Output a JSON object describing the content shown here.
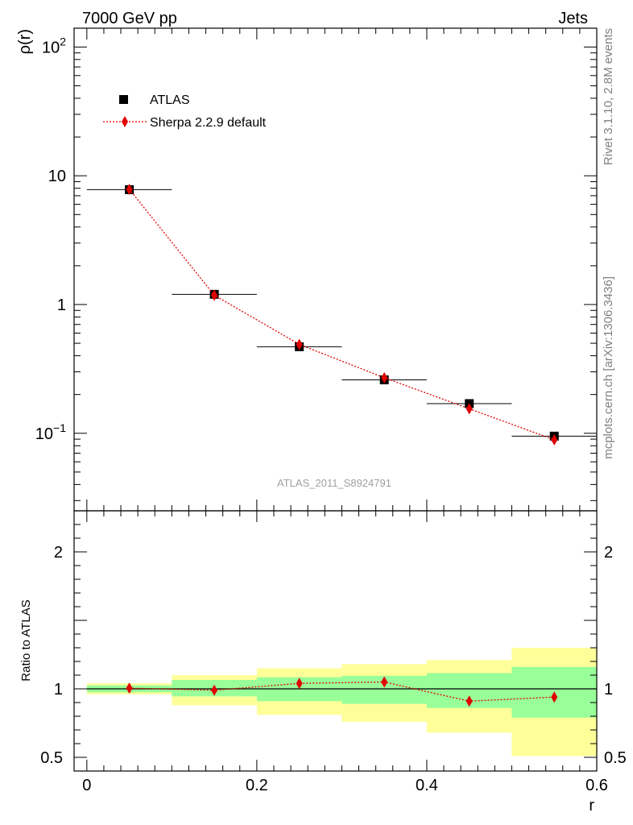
{
  "header": {
    "left": "7000 GeV pp",
    "right": "Jets"
  },
  "side_text": {
    "upper": "Rivet 3.1.10,  2.8M events",
    "lower": "mcplots.cern.ch [arXiv:1306.3436]"
  },
  "watermark": "ATLAS_2011_S8924791",
  "legend": {
    "data_label": "ATLAS",
    "mc_label": "Sherpa 2.2.9 default"
  },
  "colors": {
    "data": "#000000",
    "mc": "#e00000",
    "band_inner": "#99ff99",
    "band_outer": "#ffff99"
  },
  "chart_data": [
    {
      "type": "scatter",
      "ylabel": "ρ(r)",
      "yscale": "log",
      "ylim": [
        0.025,
        140
      ],
      "ytick_labels": [
        {
          "base": "10",
          "exp": "−1",
          "v": 0.1
        },
        {
          "base": "1",
          "exp": "",
          "v": 1
        },
        {
          "base": "10",
          "exp": "",
          "v": 10
        },
        {
          "base": "10",
          "exp": "2",
          "v": 100
        }
      ],
      "xlim": [
        -0.015,
        0.6
      ],
      "series": [
        {
          "name": "ATLAS",
          "x": [
            0.05,
            0.15,
            0.25,
            0.35,
            0.45,
            0.55
          ],
          "y": [
            7.8,
            1.2,
            0.47,
            0.26,
            0.17,
            0.095
          ],
          "xerr": 0.05
        },
        {
          "name": "Sherpa 2.2.9 default",
          "x": [
            0.05,
            0.15,
            0.25,
            0.35,
            0.45,
            0.55
          ],
          "y": [
            7.85,
            1.18,
            0.49,
            0.27,
            0.155,
            0.089
          ]
        }
      ]
    },
    {
      "type": "line",
      "xlabel": "r",
      "ylabel": "Ratio to ATLAS",
      "ylim": [
        0.4,
        2.3
      ],
      "xlim": [
        -0.015,
        0.6
      ],
      "xtick_labels": [
        "0",
        "0.2",
        "0.4",
        "0.6"
      ],
      "ytick_labels": [
        "0.5",
        "1",
        "2"
      ],
      "bins": [
        [
          0,
          0.1
        ],
        [
          0.1,
          0.2
        ],
        [
          0.2,
          0.3
        ],
        [
          0.3,
          0.4
        ],
        [
          0.4,
          0.5
        ],
        [
          0.5,
          0.6
        ]
      ],
      "band_inner": [
        [
          0.975,
          1.025
        ],
        [
          0.945,
          1.065
        ],
        [
          0.91,
          1.085
        ],
        [
          0.89,
          1.095
        ],
        [
          0.86,
          1.115
        ],
        [
          0.79,
          1.16
        ]
      ],
      "band_outer": [
        [
          0.96,
          1.04
        ],
        [
          0.88,
          1.1
        ],
        [
          0.81,
          1.15
        ],
        [
          0.76,
          1.18
        ],
        [
          0.68,
          1.21
        ],
        [
          0.51,
          1.3
        ]
      ],
      "series": [
        {
          "name": "Sherpa 2.2.9 default",
          "x": [
            0.05,
            0.15,
            0.25,
            0.35,
            0.45,
            0.55
          ],
          "y": [
            1.005,
            0.99,
            1.04,
            1.05,
            0.91,
            0.94
          ],
          "yerr": [
            0.02,
            0.025,
            0.035,
            0.035,
            0.035,
            0.03
          ]
        }
      ]
    }
  ]
}
